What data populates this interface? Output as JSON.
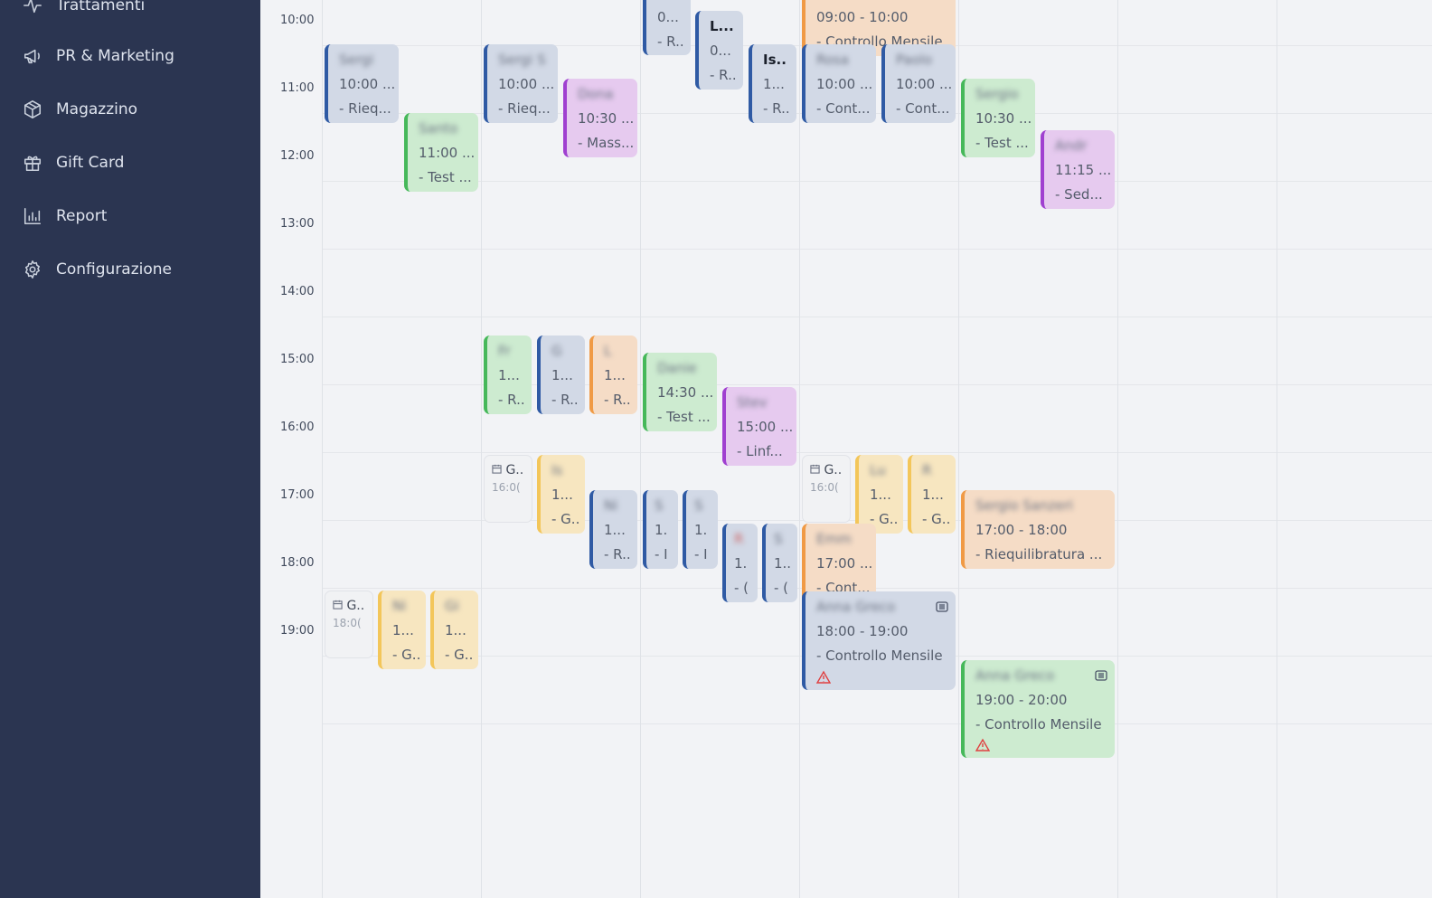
{
  "sidebar": {
    "items": [
      {
        "label": "Trattamenti",
        "icon": "activity-icon"
      },
      {
        "label": "PR & Marketing",
        "icon": "megaphone-icon"
      },
      {
        "label": "Magazzino",
        "icon": "box-icon"
      },
      {
        "label": "Gift Card",
        "icon": "gift-icon"
      },
      {
        "label": "Report",
        "icon": "bar-chart-icon"
      },
      {
        "label": "Configurazione",
        "icon": "gear-icon"
      }
    ]
  },
  "calendar": {
    "hours": [
      "10:00",
      "11:00",
      "12:00",
      "13:00",
      "14:00",
      "15:00",
      "16:00",
      "17:00",
      "18:00",
      "19:00"
    ],
    "events": [
      {
        "color": "blue",
        "name": "Sergi",
        "time": "10:00 ...",
        "desc": "- Rieq..."
      },
      {
        "color": "green",
        "name": "Santo",
        "time": "11:00 ...",
        "desc": "- Test ..."
      },
      {
        "color": "gray",
        "name": "G..",
        "time": "18:0("
      },
      {
        "color": "yellow",
        "name": "Ni",
        "time": "1...",
        "desc": "- G.."
      },
      {
        "color": "yellow",
        "name": "Gi",
        "time": "1...",
        "desc": "- G.."
      },
      {
        "color": "blue",
        "name": "Sergi S",
        "time": "10:00 ...",
        "desc": "- Rieq..."
      },
      {
        "color": "purple",
        "name": "Dona",
        "time": "10:30 ...",
        "desc": "- Mass..."
      },
      {
        "color": "green",
        "name": "Fr",
        "time": "1...",
        "desc": "- R.."
      },
      {
        "color": "blue",
        "name": "G",
        "time": "1...",
        "desc": "- R.."
      },
      {
        "color": "orange",
        "name": "L",
        "time": "1...",
        "desc": "- R.."
      },
      {
        "color": "gray",
        "name": "G..",
        "time": "16:0("
      },
      {
        "color": "yellow",
        "name": "Is",
        "time": "1...",
        "desc": "- G.."
      },
      {
        "color": "blue",
        "name": "Ni",
        "time": "1...",
        "desc": "- R.."
      },
      {
        "color": "blue",
        "name": "",
        "time": "0...",
        "desc": "- R.."
      },
      {
        "color": "blue",
        "name": "L...",
        "time": "0...",
        "desc": "- R.."
      },
      {
        "color": "green",
        "name": "Danie",
        "time": "14:30 ...",
        "desc": "- Test ..."
      },
      {
        "color": "blue",
        "name": "S",
        "time": "1.",
        "desc": "- I"
      },
      {
        "color": "blue",
        "name": "S",
        "time": "1.",
        "desc": "- I"
      },
      {
        "color": "blue",
        "name": "Is..",
        "time": "1...",
        "desc": "- R.."
      },
      {
        "color": "purple",
        "name": "Stev",
        "time": "15:00 ...",
        "desc": "- Linf..."
      },
      {
        "color": "blue",
        "name": "R",
        "time": "1.",
        "desc": "- ("
      },
      {
        "color": "blue",
        "name": "S",
        "time": "1..",
        "desc": "- ("
      },
      {
        "color": "orange",
        "name": "",
        "time": "09:00 - 10:00",
        "desc": "- Controllo Mensile"
      },
      {
        "color": "blue",
        "name": "Rosa",
        "time": "10:00 ...",
        "desc": "- Cont..."
      },
      {
        "color": "blue",
        "name": "Paolo",
        "time": "10:00 ...",
        "desc": "- Cont..."
      },
      {
        "color": "gray",
        "name": "G..",
        "time": "16:0("
      },
      {
        "color": "yellow",
        "name": "Lu",
        "time": "1...",
        "desc": "- G.."
      },
      {
        "color": "yellow",
        "name": "R",
        "time": "1...",
        "desc": "- G.."
      },
      {
        "color": "orange",
        "name": "Emm",
        "time": "17:00 ...",
        "desc": "- Cont..."
      },
      {
        "color": "blue",
        "name": "Anna Greco",
        "time": "18:00 - 19:00",
        "desc": "- Controllo Mensile"
      },
      {
        "color": "green",
        "name": "Sergio",
        "time": "10:30 ...",
        "desc": "- Test ..."
      },
      {
        "color": "purple",
        "name": "Andr",
        "time": "11:15 ...",
        "desc": "- Sed..."
      },
      {
        "color": "orange",
        "name": "Sergio Sanzeri",
        "time": "17:00 - 18:00",
        "desc": "- Riequilibratura ..."
      },
      {
        "color": "green",
        "name": "Anna Greco",
        "time": "19:00 - 20:00",
        "desc": "- Controllo Mensile"
      }
    ]
  }
}
